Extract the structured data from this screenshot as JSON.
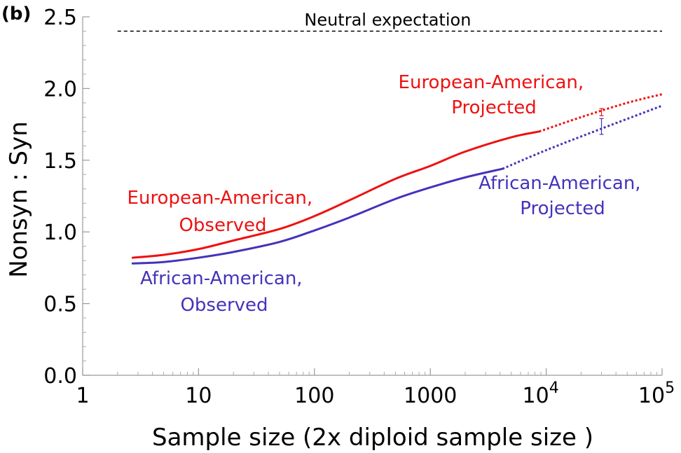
{
  "chart_data": {
    "type": "line",
    "panel_label": "(b)",
    "xlabel": "Sample  size  (2x diploid sample  size )",
    "ylabel": "Nonsyn : Syn",
    "xscale": "log10",
    "xlim": [
      1,
      100000
    ],
    "ylim": [
      0,
      2.5
    ],
    "x_tick_labels": [
      {
        "value": 1,
        "base": "1",
        "exp": ""
      },
      {
        "value": 10,
        "base": "10",
        "exp": ""
      },
      {
        "value": 100,
        "base": "100",
        "exp": ""
      },
      {
        "value": 1000,
        "base": "1000",
        "exp": ""
      },
      {
        "value": 10000,
        "base": "10",
        "exp": "4"
      },
      {
        "value": 100000,
        "base": "10",
        "exp": "5"
      }
    ],
    "y_ticks": [
      0.0,
      0.5,
      1.0,
      1.5,
      2.0,
      2.5
    ],
    "y_tick_labels": [
      "0.0",
      "0.5",
      "1.0",
      "1.5",
      "2.0",
      "2.5"
    ],
    "reference_line": {
      "label": "Neutral expectation",
      "y": 2.4,
      "x_start": 2,
      "x_end": 100000,
      "color": "#000000"
    },
    "series": [
      {
        "name": "European-American, Observed",
        "color": "#ee1111",
        "style": "solid",
        "x": [
          2.7,
          5,
          10,
          20,
          50,
          100,
          200,
          500,
          1000,
          2000,
          5000,
          8700
        ],
        "y": [
          0.82,
          0.84,
          0.88,
          0.94,
          1.02,
          1.11,
          1.22,
          1.37,
          1.46,
          1.56,
          1.66,
          1.7
        ]
      },
      {
        "name": "European-American, Projected",
        "color": "#ee1111",
        "style": "dotted",
        "x": [
          8700,
          20000,
          50000,
          100000
        ],
        "y": [
          1.7,
          1.8,
          1.9,
          1.96
        ]
      },
      {
        "name": "African-American, Observed",
        "color": "#4433bb",
        "style": "solid",
        "x": [
          2.7,
          5,
          10,
          20,
          50,
          100,
          200,
          500,
          1000,
          2000,
          4200
        ],
        "y": [
          0.78,
          0.79,
          0.82,
          0.86,
          0.93,
          1.01,
          1.1,
          1.23,
          1.31,
          1.38,
          1.44
        ]
      },
      {
        "name": "African-American, Projected",
        "color": "#4433bb",
        "style": "dotted",
        "x": [
          4200,
          10000,
          30000,
          100000
        ],
        "y": [
          1.44,
          1.57,
          1.72,
          1.88
        ]
      }
    ],
    "error_bars": [
      {
        "series": "European-American, Projected",
        "x": 30000,
        "y": 1.83,
        "low": 1.81,
        "high": 1.86,
        "color": "#ee1111"
      },
      {
        "series": "African-American, Projected",
        "x": 30000,
        "y": 1.73,
        "low": 1.68,
        "high": 1.79,
        "color": "#4433bb"
      }
    ],
    "annotations": [
      {
        "lines": [
          "European-American,",
          "Projected"
        ],
        "color": "#ee1111",
        "near": "upper-right"
      },
      {
        "lines": [
          "African-American,",
          "Projected"
        ],
        "color": "#4433bb",
        "near": "right"
      },
      {
        "lines": [
          "European-American,",
          "Observed"
        ],
        "color": "#ee1111",
        "near": "left"
      },
      {
        "lines": [
          "African-American,",
          "Observed"
        ],
        "color": "#4433bb",
        "near": "lower-left"
      }
    ]
  }
}
